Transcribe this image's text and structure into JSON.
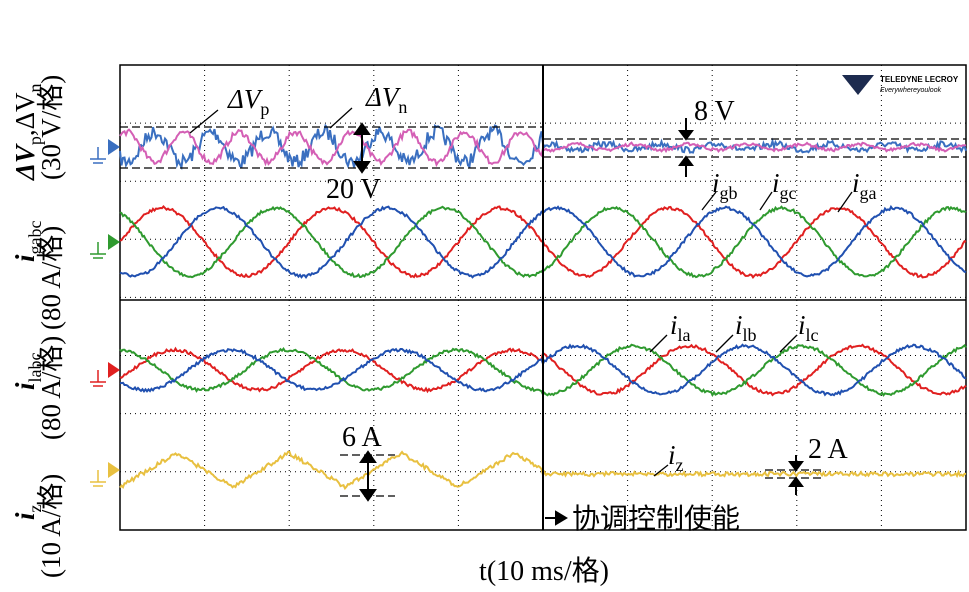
{
  "axis_labels": {
    "ch1": {
      "main": "ΔV",
      "sub1": "p",
      "sep": ",ΔV",
      "sub2": "n",
      "unit": "(30 V/格)"
    },
    "ch2": {
      "main": "i",
      "sub": "gabc",
      "unit": "(80 A/格)"
    },
    "ch3": {
      "main": "i",
      "sub": "labc",
      "unit": "(80 A/格)"
    },
    "ch4": {
      "main": "i",
      "sub": "z",
      "unit": "(10 A/格)"
    },
    "x": "t(10 ms/格)"
  },
  "annotations": {
    "dvp": {
      "main": "ΔV",
      "sub": "p"
    },
    "dvn": {
      "main": "ΔV",
      "sub": "n"
    },
    "v20": "20 V",
    "v8": "8 V",
    "igb": {
      "main": "i",
      "sub": "gb"
    },
    "igc": {
      "main": "i",
      "sub": "gc"
    },
    "iga": {
      "main": "i",
      "sub": "ga"
    },
    "ila": {
      "main": "i",
      "sub": "la"
    },
    "ilb": {
      "main": "i",
      "sub": "lb"
    },
    "ilc": {
      "main": "i",
      "sub": "lc"
    },
    "a6": "6 A",
    "iz": {
      "main": "i",
      "sub": "z"
    },
    "a2": "2 A",
    "enable": "协调控制使能"
  },
  "logo": {
    "brand": "TELEDYNE LECROY",
    "slogan": "Everywhereyoulook"
  }
}
